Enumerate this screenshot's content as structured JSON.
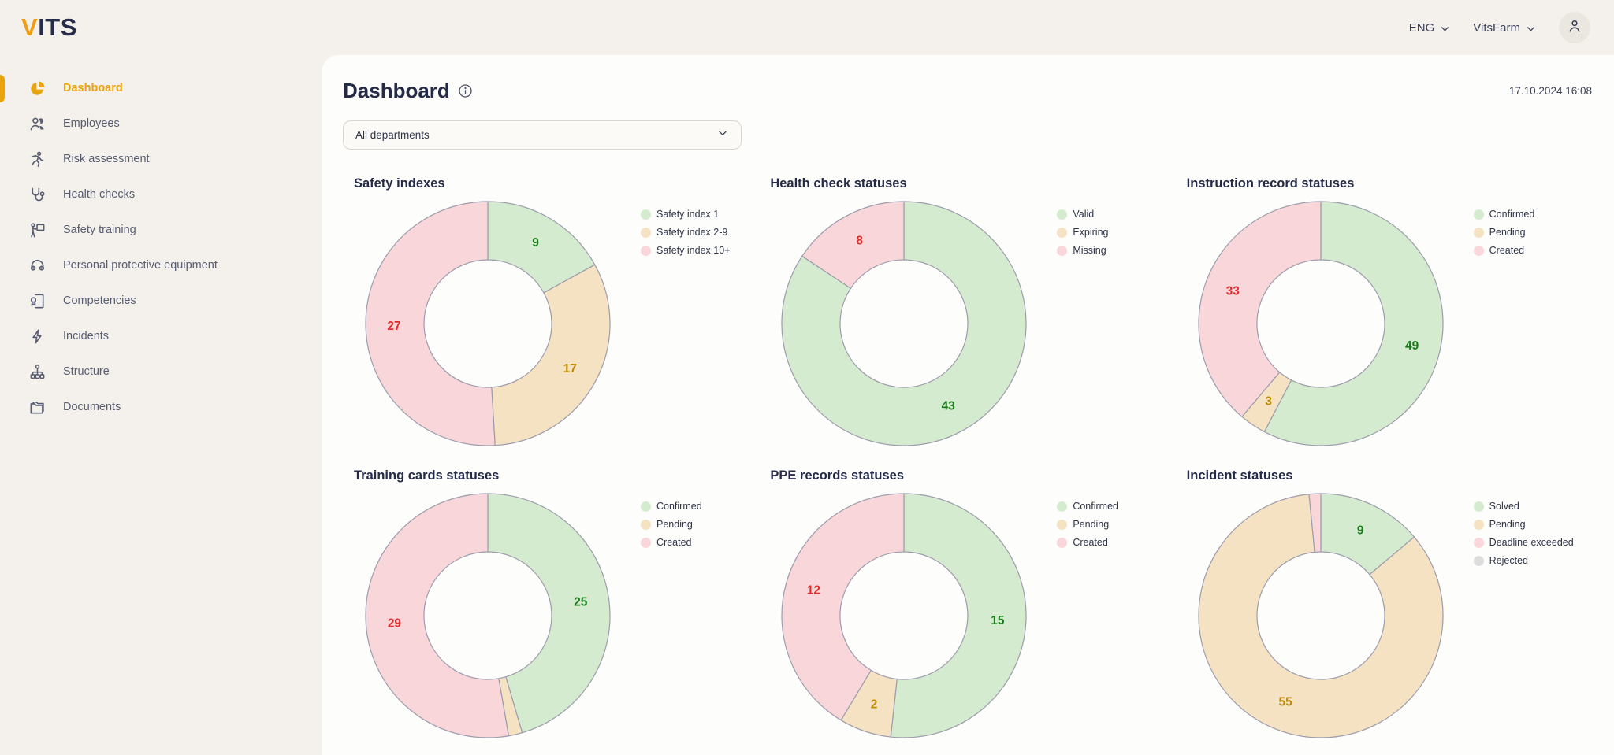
{
  "brand": {
    "logo_accent": "V",
    "logo_text": "ITS"
  },
  "topbar": {
    "language_label": "ENG",
    "tenant_label": "VitsFarm"
  },
  "sidebar": {
    "items": [
      {
        "label": "Dashboard",
        "icon": "dashboard",
        "active": true
      },
      {
        "label": "Employees",
        "icon": "employees",
        "active": false
      },
      {
        "label": "Risk assessment",
        "icon": "risk-assessment",
        "active": false
      },
      {
        "label": "Health checks",
        "icon": "health-checks",
        "active": false
      },
      {
        "label": "Safety training",
        "icon": "safety-training",
        "active": false
      },
      {
        "label": "Personal protective equipment",
        "icon": "ppe",
        "active": false
      },
      {
        "label": "Competencies",
        "icon": "competencies",
        "active": false
      },
      {
        "label": "Incidents",
        "icon": "incidents",
        "active": false
      },
      {
        "label": "Structure",
        "icon": "structure",
        "active": false
      },
      {
        "label": "Documents",
        "icon": "documents",
        "active": false
      }
    ]
  },
  "header": {
    "title": "Dashboard",
    "timestamp": "17.10.2024 16:08"
  },
  "filters": {
    "department_filter": "All departments"
  },
  "palette": {
    "green": {
      "fill": "#d5ebcf",
      "text": "#1c7c1c"
    },
    "tan": {
      "fill": "#f5e2c2",
      "text": "#bd8b00"
    },
    "pink": {
      "fill": "#f9d6da",
      "text": "#e22d2d"
    },
    "gray": {
      "fill": "#dcdcdc",
      "text": "#6f6f6f"
    },
    "segment_stroke": "#9c9cac",
    "accent": "#e9a30c"
  },
  "chart_data": [
    {
      "type": "pie",
      "subtype": "donut",
      "title": "Safety indexes",
      "legend_position": "right",
      "slices": [
        {
          "label": "Safety index 1",
          "value": 9,
          "tone": "green"
        },
        {
          "label": "Safety index 2-9",
          "value": 17,
          "tone": "tan"
        },
        {
          "label": "Safety index 10+",
          "value": 27,
          "tone": "pink"
        }
      ]
    },
    {
      "type": "pie",
      "subtype": "donut",
      "title": "Health check statuses",
      "legend_position": "right",
      "slices": [
        {
          "label": "Valid",
          "value": 43,
          "tone": "green"
        },
        {
          "label": "Expiring",
          "value": 0,
          "tone": "tan"
        },
        {
          "label": "Missing",
          "value": 8,
          "tone": "pink"
        }
      ]
    },
    {
      "type": "pie",
      "subtype": "donut",
      "title": "Instruction record statuses",
      "legend_position": "right",
      "slices": [
        {
          "label": "Confirmed",
          "value": 49,
          "tone": "green"
        },
        {
          "label": "Pending",
          "value": 3,
          "tone": "tan"
        },
        {
          "label": "Created",
          "value": 33,
          "tone": "pink"
        }
      ]
    },
    {
      "type": "pie",
      "subtype": "donut",
      "title": "Training cards statuses",
      "legend_position": "right",
      "slices": [
        {
          "label": "Confirmed",
          "value": 25,
          "tone": "green"
        },
        {
          "label": "Pending",
          "value": 1,
          "tone": "tan",
          "label_hidden": true
        },
        {
          "label": "Created",
          "value": 29,
          "tone": "pink"
        }
      ]
    },
    {
      "type": "pie",
      "subtype": "donut",
      "title": "PPE records statuses",
      "legend_position": "right",
      "slices": [
        {
          "label": "Confirmed",
          "value": 15,
          "tone": "green"
        },
        {
          "label": "Pending",
          "value": 2,
          "tone": "tan"
        },
        {
          "label": "Created",
          "value": 12,
          "tone": "pink"
        }
      ]
    },
    {
      "type": "pie",
      "subtype": "donut",
      "title": "Incident statuses",
      "legend_position": "right",
      "slices": [
        {
          "label": "Solved",
          "value": 9,
          "tone": "green"
        },
        {
          "label": "Pending",
          "value": 55,
          "tone": "tan"
        },
        {
          "label": "Deadline exceeded",
          "value": 1,
          "tone": "pink",
          "label_hidden": true
        },
        {
          "label": "Rejected",
          "value": 0,
          "tone": "gray"
        }
      ]
    }
  ]
}
